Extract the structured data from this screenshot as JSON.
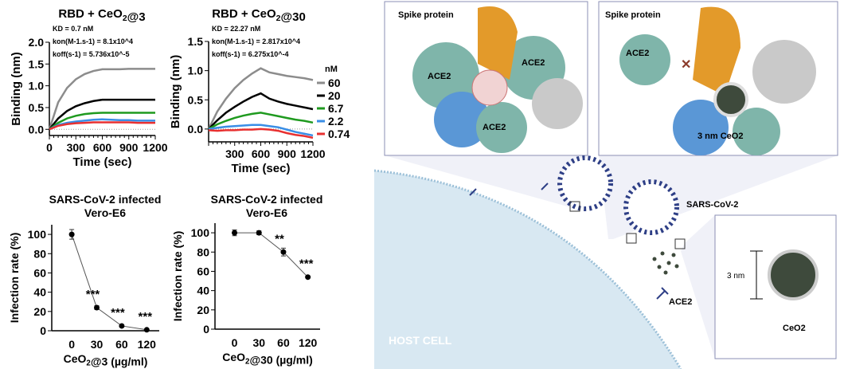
{
  "chart_data": [
    {
      "type": "line",
      "title": "RBD + CeO2@3",
      "annotations": [
        "KD = 0.7 nM",
        "kon(M-1.s-1) = 8.1x10^4",
        "koff(s-1) = 5.736x10^-5"
      ],
      "xlabel": "Time (sec)",
      "ylabel": "Binding (nm)",
      "xlim": [
        0,
        1200
      ],
      "ylim": [
        -0.05,
        2.0
      ],
      "xticks": [
        "0",
        "300",
        "600",
        "900",
        "1200"
      ],
      "yticks": [
        "0.0",
        "0.5",
        "1.0",
        "1.5",
        "2.0"
      ],
      "x": [
        0,
        100,
        200,
        300,
        400,
        500,
        600,
        700,
        800,
        900,
        1000,
        1100,
        1200
      ],
      "series": [
        {
          "name": "60",
          "color": "#8c8c8c",
          "values": [
            0,
            0.62,
            0.95,
            1.15,
            1.27,
            1.34,
            1.38,
            1.38,
            1.38,
            1.39,
            1.39,
            1.39,
            1.39
          ]
        },
        {
          "name": "20",
          "color": "#000000",
          "values": [
            0,
            0.25,
            0.42,
            0.53,
            0.6,
            0.65,
            0.68,
            0.68,
            0.68,
            0.68,
            0.68,
            0.68,
            0.68
          ]
        },
        {
          "name": "6.7",
          "color": "#1f9a1f",
          "values": [
            0,
            0.15,
            0.25,
            0.31,
            0.35,
            0.37,
            0.38,
            0.38,
            0.38,
            0.38,
            0.38,
            0.38,
            0.38
          ]
        },
        {
          "name": "2.2",
          "color": "#3a8ee6",
          "values": [
            0,
            0.1,
            0.15,
            0.18,
            0.2,
            0.22,
            0.23,
            0.22,
            0.21,
            0.21,
            0.2,
            0.2,
            0.2
          ]
        },
        {
          "name": "0.74",
          "color": "#e83030",
          "values": [
            0,
            0.08,
            0.12,
            0.14,
            0.15,
            0.16,
            0.16,
            0.16,
            0.16,
            0.16,
            0.15,
            0.15,
            0.15
          ]
        }
      ]
    },
    {
      "type": "line",
      "title": "RBD + CeO2@30",
      "annotations": [
        "KD = 22.27 nM",
        "kon(M-1.s-1) = 2.817x10^4",
        "koff(s-1) = 6.275x10^-4"
      ],
      "xlabel": "Time (sec)",
      "ylabel": "Binding (nm)",
      "xlim": [
        0,
        1200
      ],
      "ylim": [
        -0.22,
        1.5
      ],
      "xticks": [
        "300",
        "600",
        "900",
        "1200"
      ],
      "yticks": [
        "0.0",
        "0.5",
        "1.0",
        "1.5"
      ],
      "legend_title": "nM",
      "legend_position": "right",
      "x": [
        0,
        100,
        200,
        300,
        400,
        500,
        600,
        700,
        800,
        900,
        1000,
        1100,
        1200
      ],
      "series": [
        {
          "name": "60",
          "color": "#8c8c8c",
          "values": [
            0,
            0.3,
            0.52,
            0.7,
            0.84,
            0.95,
            1.04,
            0.97,
            0.94,
            0.91,
            0.89,
            0.87,
            0.84
          ]
        },
        {
          "name": "20",
          "color": "#000000",
          "values": [
            0,
            0.15,
            0.28,
            0.38,
            0.47,
            0.55,
            0.61,
            0.52,
            0.47,
            0.43,
            0.4,
            0.37,
            0.34
          ]
        },
        {
          "name": "6.7",
          "color": "#1f9a1f",
          "values": [
            0,
            0.08,
            0.14,
            0.19,
            0.23,
            0.26,
            0.28,
            0.25,
            0.22,
            0.19,
            0.16,
            0.14,
            0.11
          ]
        },
        {
          "name": "2.2",
          "color": "#3a8ee6",
          "values": [
            0,
            0.02,
            0.04,
            0.05,
            0.06,
            0.07,
            0.07,
            0.05,
            0.03,
            -0.01,
            -0.05,
            -0.08,
            -0.11
          ]
        },
        {
          "name": "0.74",
          "color": "#e83030",
          "values": [
            -0.02,
            -0.03,
            -0.02,
            -0.02,
            -0.01,
            -0.01,
            0,
            -0.01,
            -0.03,
            -0.07,
            -0.1,
            -0.12,
            -0.15
          ]
        }
      ]
    },
    {
      "type": "line",
      "title": "SARS-CoV-2 infected Vero-E6",
      "title_lines": [
        "SARS-CoV-2 infected",
        "Vero-E6"
      ],
      "xlabel": "CeO2@3 (µg/ml)",
      "ylabel": "Infection rate (%)",
      "categories": [
        "0",
        "30",
        "60",
        "120"
      ],
      "values": [
        100,
        24,
        5,
        1
      ],
      "errors": [
        5,
        2,
        1,
        0.5
      ],
      "significance": [
        "",
        "***",
        "***",
        "***"
      ],
      "ylim": [
        0,
        110
      ],
      "yticks": [
        "0",
        "20",
        "40",
        "60",
        "80",
        "100"
      ]
    },
    {
      "type": "line",
      "title": "SARS-CoV-2 infected Vero-E6",
      "title_lines": [
        "SARS-CoV-2 infected",
        "Vero-E6"
      ],
      "xlabel": "CeO2@30 (µg/ml)",
      "ylabel": "Infection rate (%)",
      "categories": [
        "0",
        "30",
        "60",
        "120"
      ],
      "values": [
        100,
        100,
        80,
        54
      ],
      "errors": [
        3,
        2,
        4,
        1
      ],
      "significance": [
        "",
        "",
        "**",
        "***"
      ],
      "ylim": [
        0,
        110
      ],
      "yticks": [
        "0",
        "20",
        "40",
        "60",
        "80",
        "100"
      ]
    }
  ],
  "diagram": {
    "inset1": {
      "spike_label": "Spike protein",
      "ace2_labels": [
        "ACE2",
        "ACE2",
        "ACE2"
      ]
    },
    "inset2": {
      "spike_label": "Spike protein",
      "ace2_label": "ACE2",
      "ceo2_label": "3 nm CeO2"
    },
    "virus_label": "SARS-CoV-2",
    "ace2_label": "ACE2",
    "cell_label": "HOST CELL",
    "inset3": {
      "size_label": "3 nm",
      "ceo2_label": "CeO2"
    },
    "colors": {
      "cell": "#d7e8f2",
      "spike": "#e39a2a",
      "ace2": "#7fb5aa",
      "rbd_blue": "#5a97d6",
      "virus": "#2e3f86",
      "ceo2": "#3e4a3c",
      "box": "#8b8fb5"
    }
  }
}
